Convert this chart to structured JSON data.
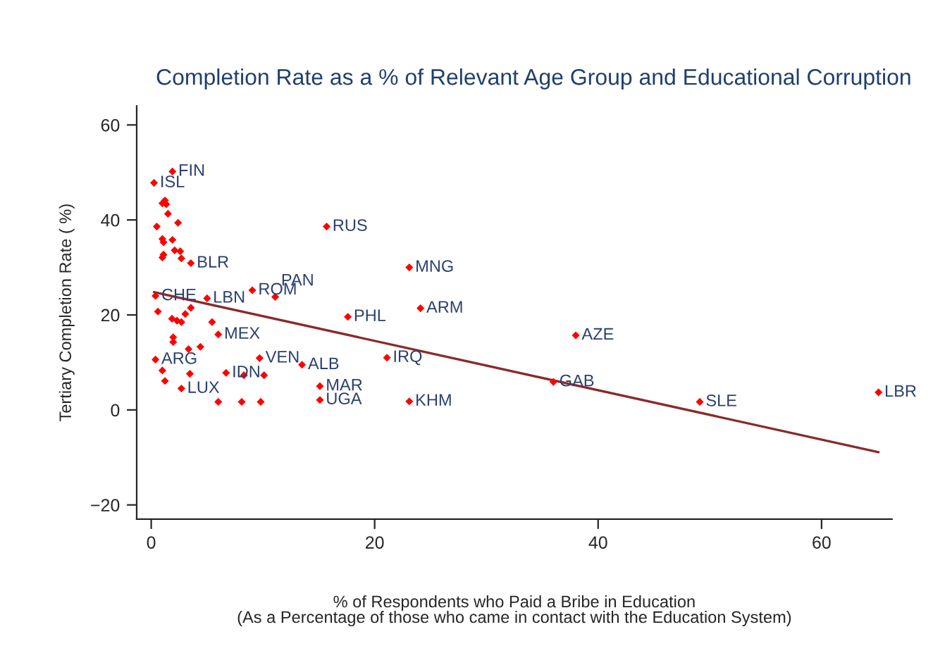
{
  "chart_data": {
    "type": "scatter",
    "title": "Completion Rate as a % of Relevant Age Group and Educational Corruption",
    "xlabel": "% of Respondents who Paid a Bribe in Education\n(As a Percentage of those who came in contact with the Education System)",
    "ylabel": "Tertiary Completion Rate ( %)",
    "xlim": [
      -1.3,
      66.3
    ],
    "ylim": [
      -23,
      64
    ],
    "xticks": [
      0,
      20,
      40,
      60
    ],
    "yticks": [
      -20,
      0,
      20,
      40,
      60
    ],
    "grid": false,
    "legend": false,
    "series": [
      {
        "marker": "diamond",
        "color": "#ff0000",
        "x": [
          1.9,
          0.25,
          1.23,
          1.0,
          1.35,
          1.5,
          0.5,
          2.4,
          1.0,
          1.1,
          1.9,
          1.1,
          1.0,
          2.1,
          2.6,
          2.7,
          3.55,
          15.7,
          23.1,
          24.1,
          17.6,
          21.1,
          23.1,
          15.1,
          15.1,
          13.5,
          38.0,
          36.0,
          49.1,
          65.1,
          0.38,
          5.0,
          9.05,
          11.1,
          0.6,
          3.55,
          3.05,
          1.86,
          2.3,
          2.7,
          5.45,
          6.0,
          1.97,
          1.97,
          3.34,
          4.4,
          0.38,
          9.7,
          1.0,
          1.23,
          2.7,
          3.46,
          6.7,
          8.3,
          10.1,
          6.0,
          8.1,
          9.8
        ],
        "values": [
          50.2,
          47.8,
          44.1,
          43.5,
          43.3,
          41.3,
          38.6,
          39.4,
          36.0,
          35.3,
          35.8,
          32.7,
          32.1,
          33.6,
          33.4,
          31.9,
          30.9,
          38.6,
          30.0,
          21.4,
          19.6,
          11.0,
          1.8,
          5.0,
          2.1,
          9.5,
          15.7,
          5.9,
          1.7,
          3.7,
          24.0,
          23.5,
          25.2,
          23.8,
          20.7,
          21.5,
          20.2,
          19.2,
          18.8,
          18.5,
          18.5,
          15.9,
          15.3,
          14.3,
          12.8,
          13.3,
          10.6,
          10.9,
          8.3,
          6.1,
          4.5,
          7.6,
          7.8,
          7.3,
          7.3,
          1.7,
          1.7,
          1.7
        ]
      },
      {
        "type": "line",
        "color": "#8b2a2a",
        "x": [
          0.25,
          65.1
        ],
        "values": [
          24.8,
          -8.9
        ]
      }
    ],
    "annotations": [
      {
        "text": "FIN",
        "x": 1.9,
        "y": 50.2
      },
      {
        "text": "ISL",
        "x": 0.25,
        "y": 47.8
      },
      {
        "text": "BLR",
        "x": 3.55,
        "y": 30.9
      },
      {
        "text": "RUS",
        "x": 15.7,
        "y": 38.6
      },
      {
        "text": "MNG",
        "x": 23.1,
        "y": 30.0
      },
      {
        "text": "ARM",
        "x": 24.1,
        "y": 21.4
      },
      {
        "text": "PHL",
        "x": 17.6,
        "y": 19.6
      },
      {
        "text": "IRQ",
        "x": 21.1,
        "y": 11.0
      },
      {
        "text": "KHM",
        "x": 23.1,
        "y": 1.8
      },
      {
        "text": "MAR",
        "x": 15.1,
        "y": 5.0
      },
      {
        "text": "UGA",
        "x": 15.1,
        "y": 2.1
      },
      {
        "text": "ALB",
        "x": 13.5,
        "y": 9.5
      },
      {
        "text": "AZE",
        "x": 38.0,
        "y": 15.7
      },
      {
        "text": "GAB",
        "x": 36.0,
        "y": 5.9
      },
      {
        "text": "SLE",
        "x": 49.1,
        "y": 1.7
      },
      {
        "text": "LBR",
        "x": 65.1,
        "y": 3.7
      },
      {
        "text": "CHE",
        "x": 0.38,
        "y": 24.0
      },
      {
        "text": "LBN",
        "x": 5.0,
        "y": 23.5
      },
      {
        "text": "ROM",
        "x": 9.05,
        "y": 25.2
      },
      {
        "text": "PAN",
        "x": 11.1,
        "y": 23.8
      },
      {
        "text": "MEX",
        "x": 6.0,
        "y": 15.9
      },
      {
        "text": "ARG",
        "x": 0.38,
        "y": 10.6
      },
      {
        "text": "VEN",
        "x": 9.7,
        "y": 10.9
      },
      {
        "text": "IDN",
        "x": 6.7,
        "y": 7.8
      },
      {
        "text": "LUX",
        "x": 2.7,
        "y": 4.5
      }
    ]
  }
}
